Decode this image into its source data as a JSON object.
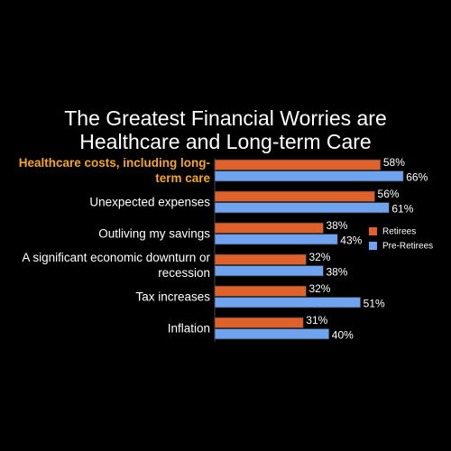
{
  "chart_data": {
    "type": "bar",
    "orientation": "horizontal",
    "title": "The Greatest Financial Worries are Healthcare and Long-term Care",
    "categories": [
      "Healthcare costs, including long-term care",
      "Unexpected expenses",
      "Outliving my savings",
      "A significant economic downturn or recession",
      "Tax increases",
      "Inflation"
    ],
    "highlight_category": 0,
    "highlight_color": "#f5a623",
    "series": [
      {
        "name": "Retirees",
        "color": "#e0622a",
        "values": [
          58,
          56,
          38,
          32,
          32,
          31
        ],
        "value_labels": [
          "58%",
          "56%",
          "38%",
          "32%",
          "32%",
          "31%"
        ]
      },
      {
        "name": "Pre-Retirees",
        "color": "#6fa3ef",
        "values": [
          66,
          61,
          43,
          38,
          51,
          40
        ],
        "value_labels": [
          "66%",
          "61%",
          "43%",
          "38%",
          "51%",
          "40%"
        ]
      }
    ],
    "legend": "right"
  }
}
